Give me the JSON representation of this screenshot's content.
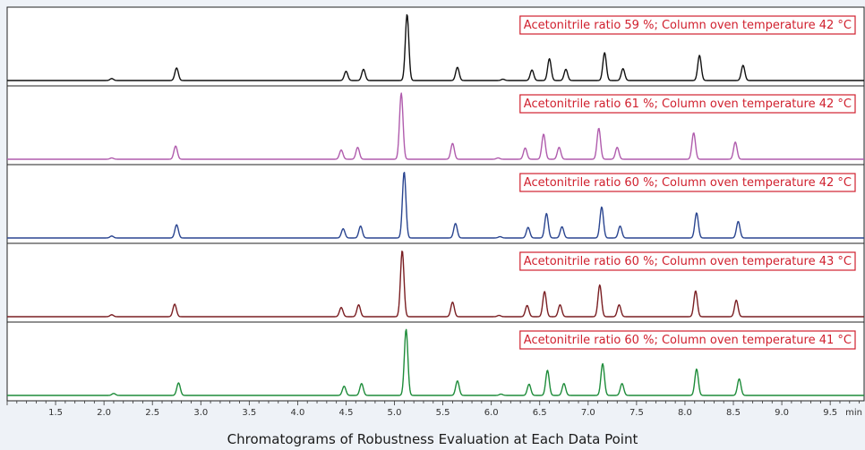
{
  "caption": "Chromatograms of Robustness Evaluation at Each Data Point",
  "chart_data": {
    "type": "line",
    "title": "Chromatograms of Robustness Evaluation at Each Data Point",
    "xlabel": "min",
    "ylabel": "",
    "xlim": [
      1.0,
      9.85
    ],
    "ylim": [
      0,
      1
    ],
    "grid": false,
    "x_ticks": [
      1.5,
      2.0,
      2.5,
      3.0,
      3.5,
      4.0,
      4.5,
      5.0,
      5.5,
      6.0,
      6.5,
      7.0,
      7.5,
      8.0,
      8.5,
      9.0,
      9.5
    ],
    "x_tick_labels": [
      "1.5",
      "2.0",
      "2.5",
      "3.0",
      "3.5",
      "4.0",
      "4.5",
      "5.0",
      "5.5",
      "6.0",
      "6.5",
      "7.0",
      "7.5",
      "8.0",
      "8.5",
      "9.0",
      "9.5"
    ],
    "x_unit_label": "min",
    "series": [
      {
        "name": "Acetonitrile ratio 59 %; Column oven temperature 42 °C",
        "color": "#111111",
        "peaks": [
          {
            "rt": 2.08,
            "height": 0.03
          },
          {
            "rt": 2.75,
            "height": 0.19
          },
          {
            "rt": 4.5,
            "height": 0.14
          },
          {
            "rt": 4.68,
            "height": 0.17
          },
          {
            "rt": 5.13,
            "height": 1.0
          },
          {
            "rt": 5.65,
            "height": 0.2
          },
          {
            "rt": 6.12,
            "height": 0.02
          },
          {
            "rt": 6.42,
            "height": 0.16
          },
          {
            "rt": 6.6,
            "height": 0.33
          },
          {
            "rt": 6.77,
            "height": 0.17
          },
          {
            "rt": 7.17,
            "height": 0.42
          },
          {
            "rt": 7.36,
            "height": 0.18
          },
          {
            "rt": 8.15,
            "height": 0.38
          },
          {
            "rt": 8.6,
            "height": 0.23
          }
        ]
      },
      {
        "name": "Acetonitrile ratio 61 %; Column oven temperature 42 °C",
        "color": "#b05cad",
        "peaks": [
          {
            "rt": 2.08,
            "height": 0.02
          },
          {
            "rt": 2.74,
            "height": 0.2
          },
          {
            "rt": 4.45,
            "height": 0.14
          },
          {
            "rt": 4.62,
            "height": 0.18
          },
          {
            "rt": 5.07,
            "height": 1.0
          },
          {
            "rt": 5.6,
            "height": 0.24
          },
          {
            "rt": 6.07,
            "height": 0.02
          },
          {
            "rt": 6.35,
            "height": 0.17
          },
          {
            "rt": 6.54,
            "height": 0.38
          },
          {
            "rt": 6.7,
            "height": 0.18
          },
          {
            "rt": 7.11,
            "height": 0.47
          },
          {
            "rt": 7.3,
            "height": 0.18
          },
          {
            "rt": 8.09,
            "height": 0.4
          },
          {
            "rt": 8.52,
            "height": 0.26
          }
        ]
      },
      {
        "name": "Acetonitrile ratio 60 %; Column oven temperature 42 °C",
        "color": "#2a4590",
        "peaks": [
          {
            "rt": 2.08,
            "height": 0.03
          },
          {
            "rt": 2.75,
            "height": 0.2
          },
          {
            "rt": 4.47,
            "height": 0.14
          },
          {
            "rt": 4.65,
            "height": 0.18
          },
          {
            "rt": 5.1,
            "height": 1.0
          },
          {
            "rt": 5.63,
            "height": 0.22
          },
          {
            "rt": 6.09,
            "height": 0.02
          },
          {
            "rt": 6.38,
            "height": 0.16
          },
          {
            "rt": 6.57,
            "height": 0.37
          },
          {
            "rt": 6.73,
            "height": 0.17
          },
          {
            "rt": 7.14,
            "height": 0.47
          },
          {
            "rt": 7.33,
            "height": 0.18
          },
          {
            "rt": 8.12,
            "height": 0.38
          },
          {
            "rt": 8.55,
            "height": 0.25
          }
        ]
      },
      {
        "name": "Acetonitrile ratio 60 %; Column oven temperature 43 °C",
        "color": "#7a1e22",
        "peaks": [
          {
            "rt": 2.08,
            "height": 0.03
          },
          {
            "rt": 2.73,
            "height": 0.19
          },
          {
            "rt": 4.45,
            "height": 0.14
          },
          {
            "rt": 4.63,
            "height": 0.18
          },
          {
            "rt": 5.08,
            "height": 1.0
          },
          {
            "rt": 5.6,
            "height": 0.22
          },
          {
            "rt": 6.08,
            "height": 0.02
          },
          {
            "rt": 6.37,
            "height": 0.17
          },
          {
            "rt": 6.55,
            "height": 0.38
          },
          {
            "rt": 6.71,
            "height": 0.18
          },
          {
            "rt": 7.12,
            "height": 0.48
          },
          {
            "rt": 7.32,
            "height": 0.18
          },
          {
            "rt": 8.11,
            "height": 0.39
          },
          {
            "rt": 8.53,
            "height": 0.25
          }
        ]
      },
      {
        "name": "Acetonitrile ratio 60 %; Column oven temperature 41 °C",
        "color": "#1e8c3a",
        "peaks": [
          {
            "rt": 2.1,
            "height": 0.03
          },
          {
            "rt": 2.77,
            "height": 0.19
          },
          {
            "rt": 4.48,
            "height": 0.14
          },
          {
            "rt": 4.66,
            "height": 0.18
          },
          {
            "rt": 5.12,
            "height": 1.0
          },
          {
            "rt": 5.65,
            "height": 0.22
          },
          {
            "rt": 6.1,
            "height": 0.02
          },
          {
            "rt": 6.39,
            "height": 0.17
          },
          {
            "rt": 6.58,
            "height": 0.38
          },
          {
            "rt": 6.75,
            "height": 0.18
          },
          {
            "rt": 7.15,
            "height": 0.48
          },
          {
            "rt": 7.35,
            "height": 0.18
          },
          {
            "rt": 8.12,
            "height": 0.4
          },
          {
            "rt": 8.56,
            "height": 0.25
          }
        ]
      }
    ]
  }
}
